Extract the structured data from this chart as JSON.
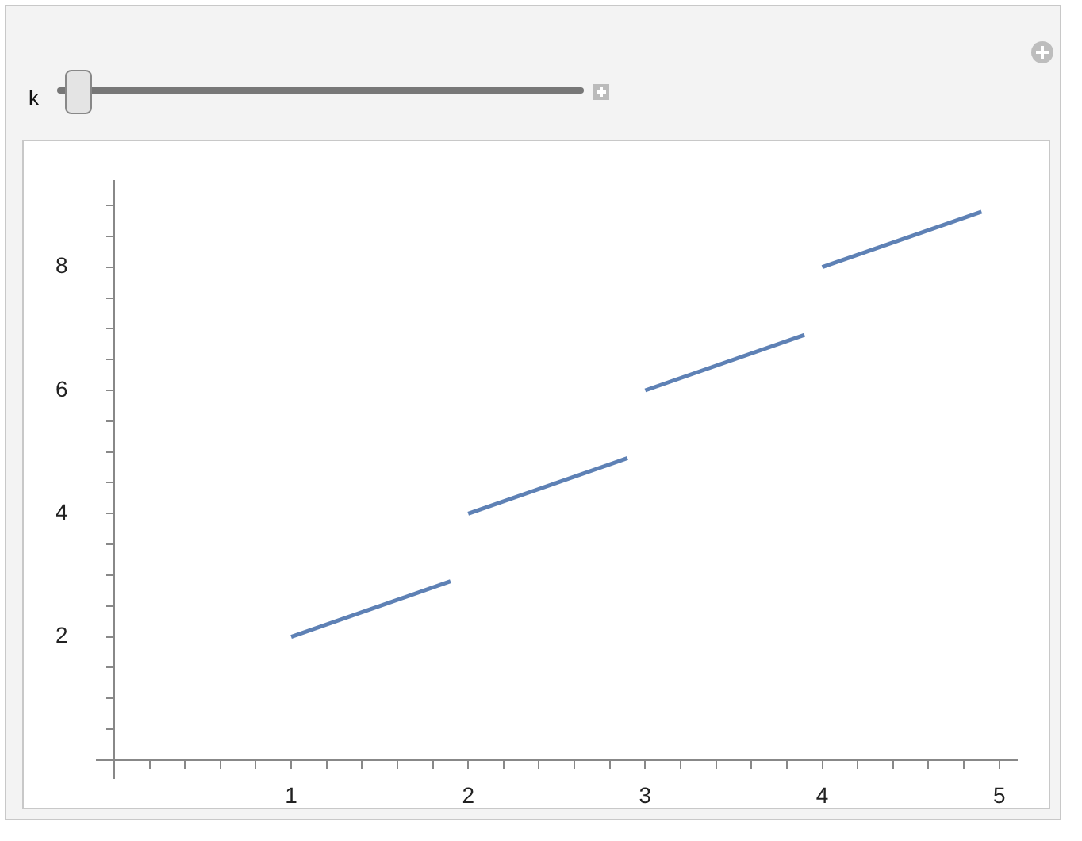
{
  "chart_data": {
    "type": "line",
    "annotations": [
      "k"
    ],
    "series": [
      {
        "color": "#5e81b5",
        "x": [
          1,
          1.9
        ],
        "values": [
          2,
          2.9
        ]
      },
      {
        "color": "#5e81b5",
        "x": [
          2,
          2.9
        ],
        "values": [
          4,
          4.9
        ]
      },
      {
        "color": "#5e81b5",
        "x": [
          3,
          3.9
        ],
        "values": [
          6,
          6.9
        ]
      },
      {
        "color": "#5e81b5",
        "x": [
          4,
          4.9
        ],
        "values": [
          8,
          8.9
        ]
      }
    ],
    "xlim": [
      -0.1,
      5.1
    ],
    "ylim": [
      -0.3,
      9.4
    ],
    "xticks": [
      {
        "value": 0.2,
        "label": null
      },
      {
        "value": 0.4,
        "label": null
      },
      {
        "value": 0.6,
        "label": null
      },
      {
        "value": 0.8,
        "label": null
      },
      1,
      {
        "value": 1.2,
        "label": null
      },
      {
        "value": 1.4,
        "label": null
      },
      {
        "value": 1.6,
        "label": null
      },
      {
        "value": 1.8,
        "label": null
      },
      2,
      {
        "value": 2.2,
        "label": null
      },
      {
        "value": 2.4,
        "label": null
      },
      {
        "value": 2.6,
        "label": null
      },
      {
        "value": 2.8,
        "label": null
      },
      3,
      {
        "value": 3.2,
        "label": null
      },
      {
        "value": 3.4,
        "label": null
      },
      {
        "value": 3.6,
        "label": null
      },
      {
        "value": 3.8,
        "label": null
      },
      4,
      {
        "value": 4.2,
        "label": null
      },
      {
        "value": 4.4,
        "label": null
      },
      {
        "value": 4.6,
        "label": null
      },
      {
        "value": 4.8,
        "label": null
      },
      5
    ],
    "yticks": [
      {
        "value": 0.5,
        "label": null
      },
      {
        "value": 1,
        "label": null
      },
      {
        "value": 1.5,
        "label": null
      },
      2,
      {
        "value": 2.5,
        "label": null
      },
      {
        "value": 3,
        "label": null
      },
      {
        "value": 3.5,
        "label": null
      },
      4,
      {
        "value": 4.5,
        "label": null
      },
      {
        "value": 5,
        "label": null
      },
      {
        "value": 5.5,
        "label": null
      },
      6,
      {
        "value": 6.5,
        "label": null
      },
      {
        "value": 7,
        "label": null
      },
      {
        "value": 7.5,
        "label": null
      },
      8,
      {
        "value": 8.5,
        "label": null
      },
      {
        "value": 9,
        "label": null
      }
    ],
    "marker": "none",
    "line_style": "solid",
    "legend": false,
    "grid": false
  }
}
